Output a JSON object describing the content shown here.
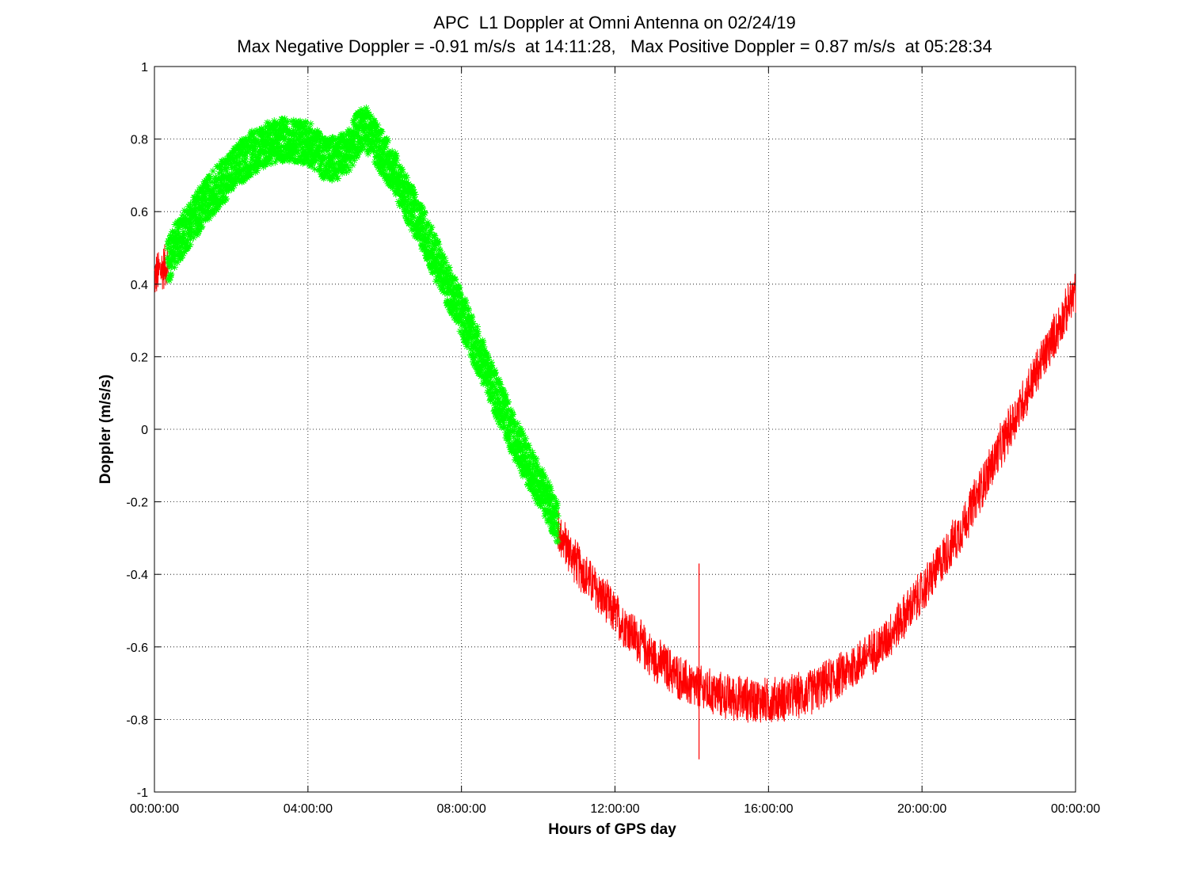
{
  "chart_data": {
    "type": "line",
    "title": "APC  L1 Doppler at Omni Antenna on 02/24/19",
    "subtitle": "Max Negative Doppler = -0.91 m/s/s  at 14:11:28,   Max Positive Doppler = 0.87 m/s/s  at 05:28:34",
    "xlabel": "Hours of GPS day",
    "ylabel": "Doppler (m/s/s)",
    "x_unit": "hours",
    "xlim": [
      0,
      24
    ],
    "ylim": [
      -1,
      1
    ],
    "x_ticks": [
      0,
      4,
      8,
      12,
      16,
      20,
      24
    ],
    "x_tick_labels": [
      "00:00:00",
      "04:00:00",
      "08:00:00",
      "12:00:00",
      "16:00:00",
      "20:00:00",
      "00:00:00"
    ],
    "y_ticks": [
      -1,
      -0.8,
      -0.6,
      -0.4,
      -0.2,
      0,
      0.2,
      0.4,
      0.6,
      0.8,
      1
    ],
    "y_tick_labels": [
      "-1",
      "-0.8",
      "-0.6",
      "-0.4",
      "-0.2",
      "0",
      "0.2",
      "0.4",
      "0.6",
      "0.8",
      "1"
    ],
    "grid": true,
    "grid_style": "dotted",
    "series": [
      {
        "color": "#ff0000",
        "marker": "line",
        "noise_band": 0.05,
        "x": [
          0.0,
          0.35,
          10.5,
          11.0,
          12.0,
          13.0,
          14.0,
          15.0,
          16.0,
          17.0,
          18.0,
          19.0,
          20.0,
          21.0,
          22.0,
          23.0,
          24.0
        ],
        "y": [
          0.42,
          0.46,
          -0.28,
          -0.37,
          -0.51,
          -0.63,
          -0.71,
          -0.74,
          -0.75,
          -0.73,
          -0.67,
          -0.59,
          -0.45,
          -0.28,
          -0.06,
          0.16,
          0.38
        ]
      },
      {
        "color": "#00ff00",
        "marker": "asterisk",
        "noise_band": 0.06,
        "x": [
          0.35,
          0.5,
          1.0,
          1.5,
          2.0,
          2.5,
          3.0,
          3.5,
          4.0,
          4.5,
          5.0,
          5.45,
          5.8,
          6.2,
          6.5,
          7.0,
          7.5,
          8.0,
          8.5,
          9.0,
          9.5,
          10.0,
          10.5
        ],
        "y": [
          0.46,
          0.5,
          0.58,
          0.65,
          0.71,
          0.76,
          0.79,
          0.8,
          0.79,
          0.74,
          0.76,
          0.84,
          0.78,
          0.72,
          0.65,
          0.55,
          0.43,
          0.32,
          0.2,
          0.07,
          -0.05,
          -0.15,
          -0.25
        ]
      }
    ],
    "annotations": [
      {
        "x": 14.19,
        "y": -0.91,
        "note": "max negative"
      },
      {
        "x": 5.48,
        "y": 0.87,
        "note": "max positive"
      }
    ]
  }
}
